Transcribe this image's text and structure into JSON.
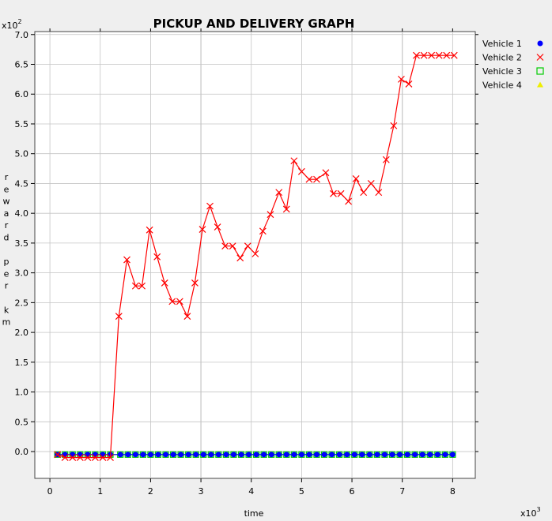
{
  "chart_data": {
    "type": "line",
    "title": "PICKUP AND DELIVERY GRAPH",
    "xlabel": "time",
    "ylabel_letters": [
      "r",
      "e",
      "w",
      "a",
      "r",
      "d",
      "",
      "p",
      "e",
      "r",
      "",
      "k",
      "m"
    ],
    "x_multiplier": "x10",
    "x_multiplier_exp": "3",
    "y_multiplier": "x10",
    "y_multiplier_exp": "2",
    "xlim": [
      -0.3,
      8.45
    ],
    "ylim": [
      -0.45,
      7.05
    ],
    "x_ticks": [
      0,
      1,
      2,
      3,
      4,
      5,
      6,
      7,
      8
    ],
    "x_tick_labels": [
      "0",
      "1",
      "2",
      "3",
      "4",
      "5",
      "6",
      "7",
      "8"
    ],
    "y_ticks": [
      0.0,
      0.5,
      1.0,
      1.5,
      2.0,
      2.5,
      3.0,
      3.5,
      4.0,
      4.5,
      5.0,
      5.5,
      6.0,
      6.5,
      7.0
    ],
    "y_tick_labels": [
      "0.0",
      "0.5",
      "1.0",
      "1.5",
      "2.0",
      "2.5",
      "3.0",
      "3.5",
      "4.0",
      "4.5",
      "5.0",
      "5.5",
      "6.0",
      "6.5",
      "7.0"
    ],
    "grid": true,
    "legend_position": "right",
    "series": [
      {
        "name": "Vehicle 1",
        "color": "#0000ff",
        "marker": "circle",
        "x": [
          0.15,
          0.3,
          0.45,
          0.6,
          0.75,
          0.9,
          1.05,
          1.2,
          1.4,
          1.55,
          1.7,
          1.85,
          2.0,
          2.15,
          2.3,
          2.45,
          2.6,
          2.75,
          2.9,
          3.05,
          3.2,
          3.35,
          3.5,
          3.65,
          3.8,
          3.95,
          4.1,
          4.25,
          4.4,
          4.55,
          4.7,
          4.85,
          5.0,
          5.15,
          5.3,
          5.45,
          5.6,
          5.75,
          5.9,
          6.05,
          6.2,
          6.35,
          6.5,
          6.65,
          6.8,
          6.95,
          7.1,
          7.25,
          7.4,
          7.55,
          7.7,
          7.85,
          8.0
        ],
        "y": [
          -0.05,
          -0.05,
          -0.05,
          -0.05,
          -0.05,
          -0.05,
          -0.05,
          -0.05,
          -0.05,
          -0.05,
          -0.05,
          -0.05,
          -0.05,
          -0.05,
          -0.05,
          -0.05,
          -0.05,
          -0.05,
          -0.05,
          -0.05,
          -0.05,
          -0.05,
          -0.05,
          -0.05,
          -0.05,
          -0.05,
          -0.05,
          -0.05,
          -0.05,
          -0.05,
          -0.05,
          -0.05,
          -0.05,
          -0.05,
          -0.05,
          -0.05,
          -0.05,
          -0.05,
          -0.05,
          -0.05,
          -0.05,
          -0.05,
          -0.05,
          -0.05,
          -0.05,
          -0.05,
          -0.05,
          -0.05,
          -0.05,
          -0.05,
          -0.05,
          -0.05,
          -0.05
        ]
      },
      {
        "name": "Vehicle 2",
        "color": "#ff0000",
        "marker": "x",
        "x": [
          0.15,
          0.3,
          0.45,
          0.6,
          0.75,
          0.9,
          1.05,
          1.2,
          1.37,
          1.53,
          1.7,
          1.83,
          1.98,
          2.13,
          2.28,
          2.43,
          2.58,
          2.73,
          2.88,
          3.03,
          3.18,
          3.33,
          3.48,
          3.63,
          3.78,
          3.93,
          4.08,
          4.23,
          4.38,
          4.55,
          4.7,
          4.85,
          5.0,
          5.15,
          5.3,
          5.48,
          5.63,
          5.78,
          5.93,
          6.08,
          6.23,
          6.38,
          6.53,
          6.68,
          6.83,
          6.98,
          7.13,
          7.28,
          7.43,
          7.58,
          7.73,
          7.88,
          8.03
        ],
        "y": [
          -0.05,
          -0.1,
          -0.1,
          -0.1,
          -0.1,
          -0.1,
          -0.1,
          -0.1,
          2.27,
          3.22,
          2.78,
          2.78,
          3.72,
          3.27,
          2.83,
          2.52,
          2.52,
          2.27,
          2.83,
          3.73,
          4.12,
          3.77,
          3.45,
          3.45,
          3.25,
          3.45,
          3.32,
          3.7,
          3.98,
          4.35,
          4.07,
          4.88,
          4.7,
          4.57,
          4.57,
          4.68,
          4.33,
          4.33,
          4.2,
          4.58,
          4.35,
          4.5,
          4.35,
          4.9,
          5.47,
          6.25,
          6.17,
          6.65,
          6.65,
          6.65,
          6.65,
          6.65,
          6.65
        ]
      },
      {
        "name": "Vehicle 3",
        "color": "#00cc00",
        "marker": "square",
        "x": [
          0.15,
          0.3,
          0.45,
          0.6,
          0.75,
          0.9,
          1.05,
          1.2,
          1.4,
          1.55,
          1.7,
          1.85,
          2.0,
          2.15,
          2.3,
          2.45,
          2.6,
          2.75,
          2.9,
          3.05,
          3.2,
          3.35,
          3.5,
          3.65,
          3.8,
          3.95,
          4.1,
          4.25,
          4.4,
          4.55,
          4.7,
          4.85,
          5.0,
          5.15,
          5.3,
          5.45,
          5.6,
          5.75,
          5.9,
          6.05,
          6.2,
          6.35,
          6.5,
          6.65,
          6.8,
          6.95,
          7.1,
          7.25,
          7.4,
          7.55,
          7.7,
          7.85,
          8.0
        ],
        "y": [
          -0.05,
          -0.05,
          -0.05,
          -0.05,
          -0.05,
          -0.05,
          -0.05,
          -0.05,
          -0.05,
          -0.05,
          -0.05,
          -0.05,
          -0.05,
          -0.05,
          -0.05,
          -0.05,
          -0.05,
          -0.05,
          -0.05,
          -0.05,
          -0.05,
          -0.05,
          -0.05,
          -0.05,
          -0.05,
          -0.05,
          -0.05,
          -0.05,
          -0.05,
          -0.05,
          -0.05,
          -0.05,
          -0.05,
          -0.05,
          -0.05,
          -0.05,
          -0.05,
          -0.05,
          -0.05,
          -0.05,
          -0.05,
          -0.05,
          -0.05,
          -0.05,
          -0.05,
          -0.05,
          -0.05,
          -0.05,
          -0.05,
          -0.05,
          -0.05,
          -0.05,
          -0.05
        ]
      },
      {
        "name": "Vehicle 4",
        "color": "#eeee00",
        "marker": "triangle",
        "x": [],
        "y": []
      }
    ]
  }
}
